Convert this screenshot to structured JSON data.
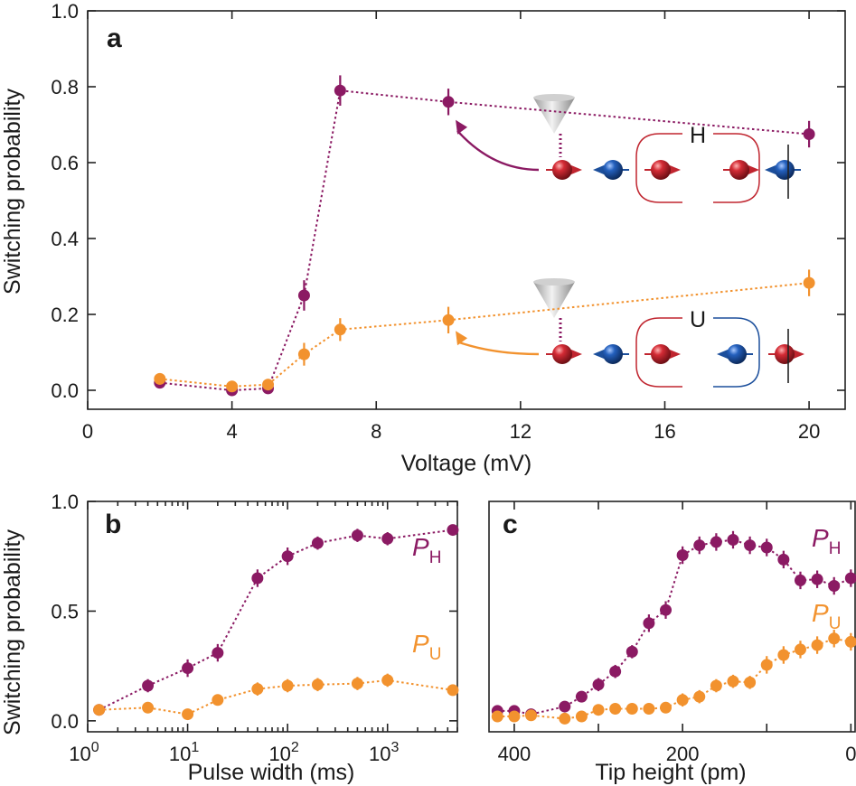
{
  "colors": {
    "H": "#8b1a63",
    "U": "#f2922e",
    "spin_red": "#c0252f",
    "spin_blue": "#1c4f9c"
  },
  "ylabel_shared": "Switching probability",
  "chart_data": [
    {
      "panel": "a",
      "type": "line",
      "title": "",
      "xlabel": "Voltage (mV)",
      "ylabel": "Switching probability",
      "xlim": [
        0,
        21
      ],
      "ylim": [
        -0.05,
        1.0
      ],
      "xticks": [
        "0",
        "4",
        "8",
        "12",
        "16",
        "20"
      ],
      "yticks": [
        "0.0",
        "0.2",
        "0.4",
        "0.6",
        "0.8",
        "1.0"
      ],
      "series": [
        {
          "name": "H",
          "x": [
            2,
            4,
            5,
            6,
            7,
            10,
            20
          ],
          "values": [
            0.02,
            0.0,
            0.005,
            0.25,
            0.79,
            0.76,
            0.675
          ],
          "err": [
            0.01,
            0.01,
            0.01,
            0.04,
            0.04,
            0.035,
            0.035
          ]
        },
        {
          "name": "U",
          "x": [
            2,
            4,
            5,
            6,
            7,
            10,
            20
          ],
          "values": [
            0.03,
            0.01,
            0.015,
            0.095,
            0.16,
            0.185,
            0.283
          ],
          "err": [
            0.015,
            0.01,
            0.015,
            0.03,
            0.03,
            0.035,
            0.035
          ]
        }
      ],
      "annotations": [
        "H",
        "U"
      ]
    },
    {
      "panel": "b",
      "type": "line",
      "xlabel": "Pulse width (ms)",
      "ylabel": "Switching probability",
      "xscale": "log",
      "xlim": [
        1,
        5000
      ],
      "ylim": [
        -0.05,
        1.0
      ],
      "xticks": [
        {
          "base": "10",
          "exp": "0"
        },
        {
          "base": "10",
          "exp": "1"
        },
        {
          "base": "10",
          "exp": "2"
        },
        {
          "base": "10",
          "exp": "3"
        }
      ],
      "yticks": [
        "0.0",
        "0.5",
        "1.0"
      ],
      "series": [
        {
          "name": "P_H",
          "x": [
            1.3,
            4,
            10,
            20,
            50,
            100,
            200,
            500,
            1000,
            4500
          ],
          "values": [
            0.05,
            0.16,
            0.24,
            0.31,
            0.65,
            0.75,
            0.81,
            0.845,
            0.83,
            0.87
          ],
          "err": [
            0.02,
            0.03,
            0.04,
            0.04,
            0.04,
            0.04,
            0.03,
            0.03,
            0.03,
            0.025
          ]
        },
        {
          "name": "P_U",
          "x": [
            1.3,
            4,
            10,
            20,
            50,
            100,
            200,
            500,
            1000,
            4500
          ],
          "values": [
            0.05,
            0.06,
            0.03,
            0.095,
            0.145,
            0.16,
            0.165,
            0.17,
            0.185,
            0.14
          ],
          "err": [
            0.02,
            0.02,
            0.02,
            0.02,
            0.03,
            0.03,
            0.03,
            0.03,
            0.03,
            0.02
          ]
        }
      ],
      "legend": [
        {
          "series": "P_H",
          "base": "P",
          "sub": "H"
        },
        {
          "series": "P_U",
          "base": "P",
          "sub": "U"
        }
      ]
    },
    {
      "panel": "c",
      "type": "line",
      "xlabel": "Tip height (pm)",
      "ylabel": "",
      "xlim": [
        430,
        -5
      ],
      "ylim": [
        -0.05,
        1.0
      ],
      "xticks": [
        "400",
        "200",
        "0"
      ],
      "yticks": [],
      "series": [
        {
          "name": "P_H",
          "x": [
            420,
            400,
            380,
            340,
            320,
            300,
            280,
            260,
            240,
            220,
            200,
            180,
            160,
            140,
            120,
            100,
            80,
            60,
            40,
            20,
            0
          ],
          "values": [
            0.045,
            0.045,
            0.03,
            0.065,
            0.11,
            0.165,
            0.225,
            0.315,
            0.445,
            0.505,
            0.755,
            0.8,
            0.815,
            0.825,
            0.8,
            0.79,
            0.735,
            0.64,
            0.645,
            0.615,
            0.65
          ],
          "err": [
            0.02,
            0.02,
            0.02,
            0.02,
            0.02,
            0.03,
            0.03,
            0.03,
            0.04,
            0.04,
            0.04,
            0.04,
            0.04,
            0.04,
            0.04,
            0.04,
            0.04,
            0.04,
            0.04,
            0.04,
            0.04
          ]
        },
        {
          "name": "P_U",
          "x": [
            420,
            400,
            380,
            340,
            320,
            300,
            280,
            260,
            240,
            220,
            200,
            180,
            160,
            140,
            120,
            100,
            80,
            60,
            40,
            20,
            0
          ],
          "values": [
            0.02,
            0.02,
            0.025,
            0.01,
            0.02,
            0.05,
            0.055,
            0.055,
            0.055,
            0.06,
            0.095,
            0.11,
            0.16,
            0.18,
            0.175,
            0.255,
            0.3,
            0.325,
            0.345,
            0.375,
            0.36
          ],
          "err": [
            0.02,
            0.02,
            0.02,
            0.02,
            0.02,
            0.02,
            0.02,
            0.02,
            0.02,
            0.02,
            0.03,
            0.03,
            0.03,
            0.03,
            0.03,
            0.04,
            0.04,
            0.04,
            0.04,
            0.04,
            0.04
          ]
        }
      ],
      "legend": [
        {
          "series": "P_H",
          "base": "P",
          "sub": "H"
        },
        {
          "series": "P_U",
          "base": "P",
          "sub": "U"
        }
      ]
    }
  ]
}
